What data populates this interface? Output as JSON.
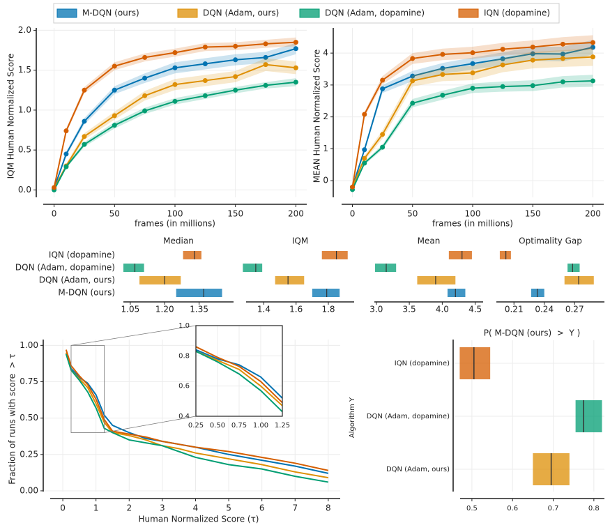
{
  "legend": {
    "items": [
      {
        "name": "M-DQN (ours)",
        "color": "#0173b2"
      },
      {
        "name": "DQN (Adam, ours)",
        "color": "#de8f05"
      },
      {
        "name": "DQN (Adam, dopamine)",
        "color": "#029e73"
      },
      {
        "name": "IQN (dopamine)",
        "color": "#d55e00"
      }
    ]
  },
  "chart_data": [
    {
      "type": "line",
      "xlabel": "frames (in millions)",
      "ylabel": "IQM Human Normalized Score",
      "grid": true,
      "x": [
        0,
        10,
        25,
        50,
        75,
        100,
        125,
        150,
        175,
        200
      ],
      "xlim": [
        -9,
        209
      ],
      "xticks": [
        0,
        50,
        100,
        150,
        200
      ],
      "ylim": [
        -0.18,
        2.03
      ],
      "yticks": [
        {
          "value": 0,
          "label": "0.0"
        },
        0.5,
        {
          "value": 1,
          "label": "1.0"
        },
        1.5,
        {
          "value": 2,
          "label": "2.0"
        }
      ],
      "series": [
        {
          "color": "#0173b2",
          "values": [
            0.02,
            0.45,
            0.86,
            1.25,
            1.4,
            1.53,
            1.58,
            1.63,
            1.66,
            1.77
          ],
          "lower": [
            0.0,
            0.42,
            0.82,
            1.2,
            1.34,
            1.46,
            1.51,
            1.56,
            1.59,
            1.7
          ],
          "upper": [
            0.04,
            0.48,
            0.9,
            1.3,
            1.46,
            1.6,
            1.65,
            1.7,
            1.73,
            1.84
          ]
        },
        {
          "color": "#de8f05",
          "values": [
            0.02,
            0.3,
            0.67,
            0.93,
            1.18,
            1.32,
            1.37,
            1.42,
            1.57,
            1.53
          ],
          "lower": [
            0.0,
            0.27,
            0.63,
            0.88,
            1.12,
            1.25,
            1.3,
            1.35,
            1.49,
            1.45
          ],
          "upper": [
            0.04,
            0.33,
            0.71,
            0.98,
            1.24,
            1.39,
            1.44,
            1.49,
            1.65,
            1.61
          ]
        },
        {
          "color": "#029e73",
          "values": [
            0.0,
            0.29,
            0.57,
            0.81,
            0.99,
            1.11,
            1.18,
            1.25,
            1.31,
            1.35
          ],
          "lower": [
            -0.02,
            0.27,
            0.54,
            0.77,
            0.95,
            1.07,
            1.14,
            1.21,
            1.27,
            1.3
          ],
          "upper": [
            0.02,
            0.31,
            0.6,
            0.85,
            1.03,
            1.15,
            1.22,
            1.29,
            1.35,
            1.4
          ]
        },
        {
          "color": "#d55e00",
          "values": [
            0.03,
            0.74,
            1.25,
            1.55,
            1.66,
            1.72,
            1.79,
            1.8,
            1.83,
            1.85
          ],
          "lower": [
            0.01,
            0.71,
            1.21,
            1.5,
            1.61,
            1.67,
            1.74,
            1.75,
            1.78,
            1.8
          ],
          "upper": [
            0.05,
            0.77,
            1.29,
            1.6,
            1.71,
            1.77,
            1.84,
            1.85,
            1.88,
            1.91
          ]
        }
      ]
    },
    {
      "type": "line",
      "xlabel": "frames (in millions)",
      "ylabel": "MEAN Human Normalized Score",
      "grid": true,
      "x": [
        0,
        10,
        25,
        50,
        75,
        100,
        125,
        150,
        175,
        200
      ],
      "xlim": [
        -9,
        209
      ],
      "xticks": [
        0,
        50,
        100,
        150,
        200
      ],
      "ylim": [
        -0.74,
        4.79
      ],
      "yticks": [
        0,
        1,
        2,
        3,
        4
      ],
      "series": [
        {
          "color": "#0173b2",
          "values": [
            -0.2,
            0.97,
            2.88,
            3.28,
            3.52,
            3.67,
            3.82,
            3.98,
            3.97,
            4.18
          ],
          "lower": [
            -0.25,
            0.9,
            2.75,
            3.12,
            3.35,
            3.48,
            3.62,
            3.76,
            3.74,
            3.95
          ],
          "upper": [
            -0.15,
            1.04,
            3.0,
            3.44,
            3.69,
            3.86,
            4.02,
            4.2,
            4.2,
            4.41
          ]
        },
        {
          "color": "#de8f05",
          "values": [
            -0.2,
            0.7,
            1.45,
            3.13,
            3.33,
            3.38,
            3.63,
            3.78,
            3.83,
            3.88
          ],
          "lower": [
            -0.25,
            0.62,
            1.32,
            2.95,
            3.12,
            3.15,
            3.4,
            3.52,
            3.57,
            3.6
          ],
          "upper": [
            -0.15,
            0.78,
            1.58,
            3.31,
            3.54,
            3.61,
            3.86,
            4.04,
            4.09,
            4.16
          ]
        },
        {
          "color": "#029e73",
          "values": [
            -0.28,
            0.55,
            1.05,
            2.43,
            2.68,
            2.9,
            2.95,
            2.98,
            3.1,
            3.13
          ],
          "lower": [
            -0.33,
            0.5,
            0.97,
            2.3,
            2.54,
            2.75,
            2.79,
            2.81,
            2.92,
            2.94
          ],
          "upper": [
            -0.23,
            0.6,
            1.13,
            2.56,
            2.82,
            3.05,
            3.11,
            3.15,
            3.28,
            3.32
          ]
        },
        {
          "color": "#d55e00",
          "values": [
            -0.2,
            2.08,
            3.15,
            3.83,
            3.96,
            4.01,
            4.12,
            4.19,
            4.28,
            4.33
          ],
          "lower": [
            -0.25,
            2.0,
            3.02,
            3.66,
            3.78,
            3.82,
            3.92,
            3.98,
            4.06,
            4.1
          ],
          "upper": [
            -0.15,
            2.16,
            3.28,
            4.0,
            4.14,
            4.2,
            4.32,
            4.4,
            4.5,
            4.56
          ]
        }
      ]
    },
    {
      "type": "interval_grid",
      "categories": [
        "IQN (dopamine)",
        "DQN (Adam, dopamine)",
        "DQN (Adam, ours)",
        "M-DQN (ours)"
      ],
      "colors": [
        "#d55e00",
        "#029e73",
        "#de8f05",
        "#0173b2"
      ],
      "panels": [
        {
          "title": "Median",
          "xlim": [
            1.02,
            1.5
          ],
          "xticks": [
            1.05,
            {
              "value": 1.2,
              "label": "1.20"
            },
            1.35
          ],
          "low": [
            1.28,
            1.02,
            1.09,
            1.25
          ],
          "point": [
            1.33,
            1.07,
            1.2,
            1.37
          ],
          "high": [
            1.36,
            1.11,
            1.27,
            1.45
          ]
        },
        {
          "title": "IQM",
          "xlim": [
            1.29,
            1.96
          ],
          "xticks": [
            1.4,
            1.6,
            1.8
          ],
          "low": [
            1.76,
            1.27,
            1.47,
            1.7
          ],
          "point": [
            1.85,
            1.35,
            1.55,
            1.79
          ],
          "high": [
            1.92,
            1.39,
            1.65,
            1.87
          ]
        },
        {
          "title": "Mean",
          "xlim": [
            2.97,
            4.62
          ],
          "xticks": [
            {
              "value": 3,
              "label": "3.0"
            },
            3.5,
            {
              "value": 4,
              "label": "4.0"
            },
            4.5
          ],
          "low": [
            4.1,
            2.98,
            3.62,
            4.08
          ],
          "point": [
            4.3,
            3.15,
            3.9,
            4.2
          ],
          "high": [
            4.45,
            3.3,
            4.2,
            4.35
          ]
        },
        {
          "title": "Optimality Gap",
          "xlim": [
            0.1926,
            0.2995
          ],
          "xticks": [
            0.21,
            0.24,
            0.27
          ],
          "low": [
            0.196,
            0.263,
            0.26,
            0.227
          ],
          "point": [
            0.202,
            0.268,
            0.274,
            0.233
          ],
          "high": [
            0.207,
            0.275,
            0.289,
            0.24
          ]
        }
      ]
    },
    {
      "type": "profile",
      "xlabel": "Human Normalized Score (τ)",
      "ylabel": "Fraction of runs with score  > τ",
      "grid": true,
      "x": [
        0.1,
        0.25,
        0.5,
        0.75,
        1,
        1.25,
        1.5,
        2,
        2.5,
        3,
        3.5,
        4,
        5,
        6,
        7,
        8
      ],
      "xlim": [
        -0.59,
        8.36
      ],
      "xticks": [
        0,
        1,
        2,
        3,
        4,
        5,
        6,
        7,
        8
      ],
      "ylim": [
        -0.053,
        1.04
      ],
      "yticks": [
        {
          "value": 0,
          "label": "0.00"
        },
        0.25,
        {
          "value": 0.5,
          "label": "0.50"
        },
        0.75,
        {
          "value": 1,
          "label": "1.00"
        }
      ],
      "series": [
        {
          "color": "#0173b2",
          "values": [
            0.95,
            0.84,
            0.78,
            0.74,
            0.66,
            0.52,
            0.45,
            0.4,
            0.36,
            0.34,
            0.32,
            0.3,
            0.25,
            0.21,
            0.17,
            0.12
          ]
        },
        {
          "color": "#de8f05",
          "values": [
            0.95,
            0.83,
            0.77,
            0.71,
            0.6,
            0.47,
            0.4,
            0.38,
            0.35,
            0.31,
            0.29,
            0.26,
            0.22,
            0.18,
            0.13,
            0.09
          ]
        },
        {
          "color": "#029e73",
          "values": [
            0.94,
            0.83,
            0.76,
            0.68,
            0.57,
            0.43,
            0.4,
            0.35,
            0.33,
            0.31,
            0.27,
            0.23,
            0.18,
            0.15,
            0.1,
            0.06
          ]
        },
        {
          "color": "#d55e00",
          "values": [
            0.97,
            0.86,
            0.79,
            0.73,
            0.63,
            0.49,
            0.41,
            0.39,
            0.37,
            0.34,
            0.32,
            0.3,
            0.27,
            0.23,
            0.19,
            0.14
          ]
        }
      ],
      "inset": {
        "xlim": [
          0.25,
          1.25
        ],
        "ylim": [
          0.4,
          1.0
        ],
        "xticks": [
          0.25,
          {
            "value": 0.5,
            "label": "0.50"
          },
          0.75,
          {
            "value": 1,
            "label": "1.00"
          },
          1.25
        ],
        "yticks": [
          0.4,
          0.6,
          0.8,
          {
            "value": 1,
            "label": "1.0"
          }
        ]
      }
    },
    {
      "type": "probability",
      "title": "P( M-DQN (ours)  >  Y )",
      "ylabel": "Algorithm Y",
      "grid": true,
      "categories": [
        "IQN (dopamine)",
        "DQN (Adam, dopamine)",
        "DQN (Adam, ours)"
      ],
      "colors": [
        "#d55e00",
        "#029e73",
        "#de8f05"
      ],
      "xlim": [
        0.471,
        0.826
      ],
      "xticks": [
        0.5,
        0.6,
        0.7,
        0.8
      ],
      "low": [
        0.47,
        0.755,
        0.65
      ],
      "point": [
        0.505,
        0.775,
        0.695
      ],
      "high": [
        0.545,
        0.82,
        0.74
      ]
    }
  ]
}
